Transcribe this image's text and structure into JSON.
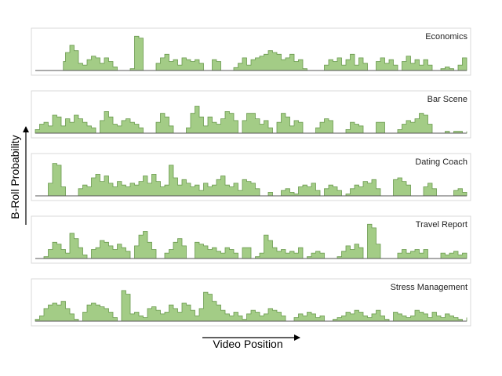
{
  "colors": {
    "fill": "#a3cc86",
    "stroke": "#6a9a4e",
    "frame": "#d9d9d9",
    "baseline": "#555555"
  },
  "axes": {
    "x_label": "Video Position",
    "y_label": "B-Roll Probability"
  },
  "chart_data": {
    "type": "area",
    "xlabel": "Video Position",
    "ylabel": "B-Roll Probability",
    "xlim": [
      0,
      1
    ],
    "ylim": [
      0,
      1
    ],
    "grid": false,
    "panels": [
      {
        "name": "Economics",
        "x": [
          0.0,
          0.06,
          0.065,
          0.07,
          0.08,
          0.09,
          0.1,
          0.11,
          0.12,
          0.13,
          0.14,
          0.15,
          0.16,
          0.17,
          0.18,
          0.19,
          0.2,
          0.21,
          0.22,
          0.23,
          0.24,
          0.25,
          0.26,
          0.27,
          0.28,
          0.29,
          0.3,
          0.31,
          0.32,
          0.33,
          0.34,
          0.35,
          0.36,
          0.37,
          0.38,
          0.39,
          0.4,
          0.41,
          0.42,
          0.43,
          0.44,
          0.45,
          0.46,
          0.47,
          0.48,
          0.49,
          0.5,
          0.51,
          0.52,
          0.53,
          0.54,
          0.55,
          0.56,
          0.57,
          0.58,
          0.59,
          0.6,
          0.61,
          0.62,
          0.63,
          0.64,
          0.65,
          0.66,
          0.67,
          0.68,
          0.69,
          0.7,
          0.71,
          0.72,
          0.73,
          0.74,
          0.75,
          0.76,
          0.77,
          0.78,
          0.79,
          0.8,
          0.81,
          0.82,
          0.83,
          0.84,
          0.85,
          0.86,
          0.87,
          0.88,
          0.89,
          0.9,
          0.91,
          0.92,
          0.93,
          0.94,
          0.95,
          0.96,
          0.97,
          0.98,
          0.99,
          1.0
        ],
        "y": [
          0.0,
          0.0,
          0.25,
          0.5,
          0.7,
          0.55,
          0.2,
          0.15,
          0.3,
          0.4,
          0.35,
          0.2,
          0.35,
          0.25,
          0.1,
          0.0,
          0.0,
          0.0,
          0.05,
          0.95,
          0.9,
          0.0,
          0.0,
          0.0,
          0.2,
          0.35,
          0.45,
          0.25,
          0.3,
          0.15,
          0.35,
          0.3,
          0.25,
          0.3,
          0.2,
          0.0,
          0.0,
          0.3,
          0.25,
          0.0,
          0.0,
          0.0,
          0.08,
          0.2,
          0.35,
          0.15,
          0.3,
          0.35,
          0.4,
          0.45,
          0.55,
          0.5,
          0.45,
          0.3,
          0.35,
          0.45,
          0.25,
          0.3,
          0.05,
          0.0,
          0.0,
          0.0,
          0.0,
          0.15,
          0.3,
          0.25,
          0.35,
          0.15,
          0.3,
          0.45,
          0.15,
          0.35,
          0.2,
          0.0,
          0.0,
          0.25,
          0.35,
          0.2,
          0.3,
          0.15,
          0.0,
          0.25,
          0.4,
          0.2,
          0.3,
          0.15,
          0.3,
          0.15,
          0.0,
          0.0,
          0.05,
          0.1,
          0.05,
          0.0,
          0.15,
          0.35,
          0.3
        ]
      },
      {
        "name": "Bar Scene",
        "x": [
          0.0,
          0.01,
          0.02,
          0.03,
          0.04,
          0.05,
          0.06,
          0.07,
          0.08,
          0.09,
          0.1,
          0.11,
          0.12,
          0.13,
          0.14,
          0.15,
          0.16,
          0.17,
          0.18,
          0.19,
          0.2,
          0.21,
          0.22,
          0.23,
          0.24,
          0.25,
          0.26,
          0.27,
          0.28,
          0.29,
          0.3,
          0.31,
          0.32,
          0.33,
          0.34,
          0.35,
          0.36,
          0.37,
          0.38,
          0.39,
          0.4,
          0.41,
          0.42,
          0.43,
          0.44,
          0.45,
          0.46,
          0.47,
          0.48,
          0.49,
          0.5,
          0.51,
          0.52,
          0.53,
          0.54,
          0.55,
          0.56,
          0.57,
          0.58,
          0.59,
          0.6,
          0.61,
          0.62,
          0.63,
          0.64,
          0.65,
          0.66,
          0.67,
          0.68,
          0.69,
          0.7,
          0.71,
          0.72,
          0.73,
          0.74,
          0.75,
          0.76,
          0.77,
          0.78,
          0.79,
          0.8,
          0.81,
          0.82,
          0.83,
          0.84,
          0.85,
          0.86,
          0.87,
          0.88,
          0.89,
          0.9,
          0.91,
          0.92,
          0.93,
          0.94,
          0.95,
          0.96,
          0.97,
          0.98,
          0.99,
          1.0
        ],
        "y": [
          0.1,
          0.25,
          0.3,
          0.2,
          0.5,
          0.45,
          0.2,
          0.4,
          0.3,
          0.5,
          0.4,
          0.3,
          0.2,
          0.15,
          0.0,
          0.35,
          0.6,
          0.45,
          0.25,
          0.2,
          0.35,
          0.4,
          0.3,
          0.25,
          0.15,
          0.0,
          0.0,
          0.0,
          0.3,
          0.55,
          0.45,
          0.2,
          0.0,
          0.0,
          0.0,
          0.15,
          0.55,
          0.75,
          0.45,
          0.2,
          0.45,
          0.3,
          0.25,
          0.4,
          0.6,
          0.55,
          0.35,
          0.0,
          0.35,
          0.55,
          0.55,
          0.4,
          0.25,
          0.35,
          0.15,
          0.0,
          0.3,
          0.55,
          0.45,
          0.2,
          0.35,
          0.3,
          0.0,
          0.0,
          0.0,
          0.15,
          0.3,
          0.4,
          0.35,
          0.0,
          0.0,
          0.0,
          0.1,
          0.3,
          0.25,
          0.2,
          0.0,
          0.0,
          0.0,
          0.3,
          0.3,
          0.0,
          0.0,
          0.0,
          0.1,
          0.25,
          0.35,
          0.3,
          0.4,
          0.55,
          0.5,
          0.25,
          0.0,
          0.0,
          0.0,
          0.05,
          0.0,
          0.05,
          0.05,
          0.0,
          0.05
        ]
      },
      {
        "name": "Dating Coach",
        "x": [
          0.0,
          0.01,
          0.02,
          0.03,
          0.04,
          0.05,
          0.06,
          0.07,
          0.08,
          0.09,
          0.1,
          0.11,
          0.12,
          0.13,
          0.14,
          0.15,
          0.16,
          0.17,
          0.18,
          0.19,
          0.2,
          0.21,
          0.22,
          0.23,
          0.24,
          0.25,
          0.26,
          0.27,
          0.28,
          0.29,
          0.3,
          0.31,
          0.32,
          0.33,
          0.34,
          0.35,
          0.36,
          0.37,
          0.38,
          0.39,
          0.4,
          0.41,
          0.42,
          0.43,
          0.44,
          0.45,
          0.46,
          0.47,
          0.48,
          0.49,
          0.5,
          0.51,
          0.52,
          0.53,
          0.54,
          0.55,
          0.56,
          0.57,
          0.58,
          0.59,
          0.6,
          0.61,
          0.62,
          0.63,
          0.64,
          0.65,
          0.66,
          0.67,
          0.68,
          0.69,
          0.7,
          0.71,
          0.72,
          0.73,
          0.74,
          0.75,
          0.76,
          0.77,
          0.78,
          0.79,
          0.8,
          0.81,
          0.82,
          0.83,
          0.84,
          0.85,
          0.86,
          0.87,
          0.88,
          0.89,
          0.9,
          0.91,
          0.92,
          0.93,
          0.94,
          0.95,
          0.96,
          0.97,
          0.98,
          0.99,
          1.0
        ],
        "y": [
          0.0,
          0.0,
          0.0,
          0.35,
          0.9,
          0.85,
          0.25,
          0.0,
          0.0,
          0.0,
          0.2,
          0.3,
          0.25,
          0.5,
          0.6,
          0.4,
          0.55,
          0.35,
          0.25,
          0.4,
          0.3,
          0.25,
          0.35,
          0.3,
          0.4,
          0.55,
          0.35,
          0.6,
          0.4,
          0.25,
          0.3,
          0.85,
          0.5,
          0.3,
          0.45,
          0.35,
          0.25,
          0.3,
          0.15,
          0.35,
          0.25,
          0.3,
          0.45,
          0.55,
          0.3,
          0.25,
          0.35,
          0.15,
          0.45,
          0.4,
          0.35,
          0.2,
          0.0,
          0.0,
          0.1,
          0.0,
          0.0,
          0.15,
          0.2,
          0.1,
          0.05,
          0.25,
          0.3,
          0.25,
          0.35,
          0.15,
          0.0,
          0.2,
          0.3,
          0.25,
          0.15,
          0.0,
          0.05,
          0.2,
          0.3,
          0.25,
          0.4,
          0.35,
          0.45,
          0.2,
          0.0,
          0.0,
          0.0,
          0.45,
          0.5,
          0.4,
          0.3,
          0.0,
          0.0,
          0.0,
          0.25,
          0.35,
          0.2,
          0.0,
          0.0,
          0.0,
          0.0,
          0.15,
          0.2,
          0.1,
          0.0
        ]
      },
      {
        "name": "Travel Report",
        "x": [
          0.0,
          0.01,
          0.02,
          0.03,
          0.04,
          0.05,
          0.06,
          0.07,
          0.08,
          0.09,
          0.1,
          0.11,
          0.12,
          0.13,
          0.14,
          0.15,
          0.16,
          0.17,
          0.18,
          0.19,
          0.2,
          0.21,
          0.22,
          0.23,
          0.24,
          0.25,
          0.26,
          0.27,
          0.28,
          0.29,
          0.3,
          0.31,
          0.32,
          0.33,
          0.34,
          0.35,
          0.36,
          0.37,
          0.38,
          0.39,
          0.4,
          0.41,
          0.42,
          0.43,
          0.44,
          0.45,
          0.46,
          0.47,
          0.48,
          0.49,
          0.5,
          0.51,
          0.52,
          0.53,
          0.54,
          0.55,
          0.56,
          0.57,
          0.58,
          0.59,
          0.6,
          0.61,
          0.62,
          0.63,
          0.64,
          0.65,
          0.66,
          0.67,
          0.68,
          0.69,
          0.7,
          0.71,
          0.72,
          0.73,
          0.74,
          0.75,
          0.76,
          0.77,
          0.78,
          0.79,
          0.8,
          0.81,
          0.82,
          0.83,
          0.84,
          0.85,
          0.86,
          0.87,
          0.88,
          0.89,
          0.9,
          0.91,
          0.92,
          0.93,
          0.94,
          0.95,
          0.96,
          0.97,
          0.98,
          0.99,
          1.0
        ],
        "y": [
          0.0,
          0.0,
          0.05,
          0.25,
          0.45,
          0.4,
          0.25,
          0.15,
          0.7,
          0.55,
          0.3,
          0.1,
          0.0,
          0.25,
          0.3,
          0.5,
          0.45,
          0.35,
          0.25,
          0.4,
          0.3,
          0.2,
          0.0,
          0.35,
          0.65,
          0.75,
          0.45,
          0.25,
          0.0,
          0.0,
          0.15,
          0.25,
          0.45,
          0.55,
          0.35,
          0.0,
          0.0,
          0.45,
          0.4,
          0.35,
          0.25,
          0.3,
          0.2,
          0.15,
          0.3,
          0.25,
          0.15,
          0.0,
          0.3,
          0.3,
          0.0,
          0.05,
          0.15,
          0.65,
          0.5,
          0.3,
          0.2,
          0.25,
          0.15,
          0.2,
          0.15,
          0.3,
          0.0,
          0.05,
          0.15,
          0.2,
          0.15,
          0.0,
          0.0,
          0.0,
          0.05,
          0.2,
          0.35,
          0.25,
          0.4,
          0.3,
          0.0,
          0.95,
          0.85,
          0.4,
          0.0,
          0.0,
          0.0,
          0.0,
          0.15,
          0.25,
          0.15,
          0.2,
          0.25,
          0.15,
          0.25,
          0.0,
          0.0,
          0.0,
          0.15,
          0.1,
          0.15,
          0.2,
          0.1,
          0.15,
          0.0
        ]
      },
      {
        "name": "Stress Management",
        "x": [
          0.0,
          0.01,
          0.02,
          0.03,
          0.04,
          0.05,
          0.06,
          0.07,
          0.08,
          0.09,
          0.1,
          0.11,
          0.12,
          0.13,
          0.14,
          0.15,
          0.16,
          0.17,
          0.18,
          0.19,
          0.2,
          0.21,
          0.22,
          0.23,
          0.24,
          0.25,
          0.26,
          0.27,
          0.28,
          0.29,
          0.3,
          0.31,
          0.32,
          0.33,
          0.34,
          0.35,
          0.36,
          0.37,
          0.38,
          0.39,
          0.4,
          0.41,
          0.42,
          0.43,
          0.44,
          0.45,
          0.46,
          0.47,
          0.48,
          0.49,
          0.5,
          0.51,
          0.52,
          0.53,
          0.54,
          0.55,
          0.56,
          0.57,
          0.58,
          0.59,
          0.6,
          0.61,
          0.62,
          0.63,
          0.64,
          0.65,
          0.66,
          0.67,
          0.68,
          0.69,
          0.7,
          0.71,
          0.72,
          0.73,
          0.74,
          0.75,
          0.76,
          0.77,
          0.78,
          0.79,
          0.8,
          0.81,
          0.82,
          0.83,
          0.84,
          0.85,
          0.86,
          0.87,
          0.88,
          0.89,
          0.9,
          0.91,
          0.92,
          0.93,
          0.94,
          0.95,
          0.96,
          0.97,
          0.98,
          0.99,
          1.0
        ],
        "y": [
          0.05,
          0.15,
          0.35,
          0.45,
          0.5,
          0.45,
          0.55,
          0.35,
          0.2,
          0.05,
          0.0,
          0.25,
          0.45,
          0.5,
          0.45,
          0.4,
          0.35,
          0.25,
          0.1,
          0.0,
          0.85,
          0.75,
          0.2,
          0.25,
          0.15,
          0.1,
          0.35,
          0.4,
          0.3,
          0.2,
          0.25,
          0.45,
          0.35,
          0.25,
          0.5,
          0.45,
          0.3,
          0.15,
          0.35,
          0.8,
          0.75,
          0.55,
          0.45,
          0.3,
          0.2,
          0.15,
          0.25,
          0.15,
          0.05,
          0.2,
          0.3,
          0.25,
          0.15,
          0.2,
          0.35,
          0.3,
          0.25,
          0.15,
          0.0,
          0.0,
          0.1,
          0.2,
          0.15,
          0.25,
          0.2,
          0.1,
          0.15,
          0.0,
          0.0,
          0.05,
          0.1,
          0.15,
          0.25,
          0.2,
          0.3,
          0.25,
          0.15,
          0.1,
          0.2,
          0.3,
          0.15,
          0.05,
          0.0,
          0.25,
          0.2,
          0.15,
          0.1,
          0.15,
          0.3,
          0.25,
          0.2,
          0.1,
          0.25,
          0.15,
          0.1,
          0.2,
          0.15,
          0.1,
          0.05,
          0.0,
          0.1
        ]
      }
    ]
  }
}
